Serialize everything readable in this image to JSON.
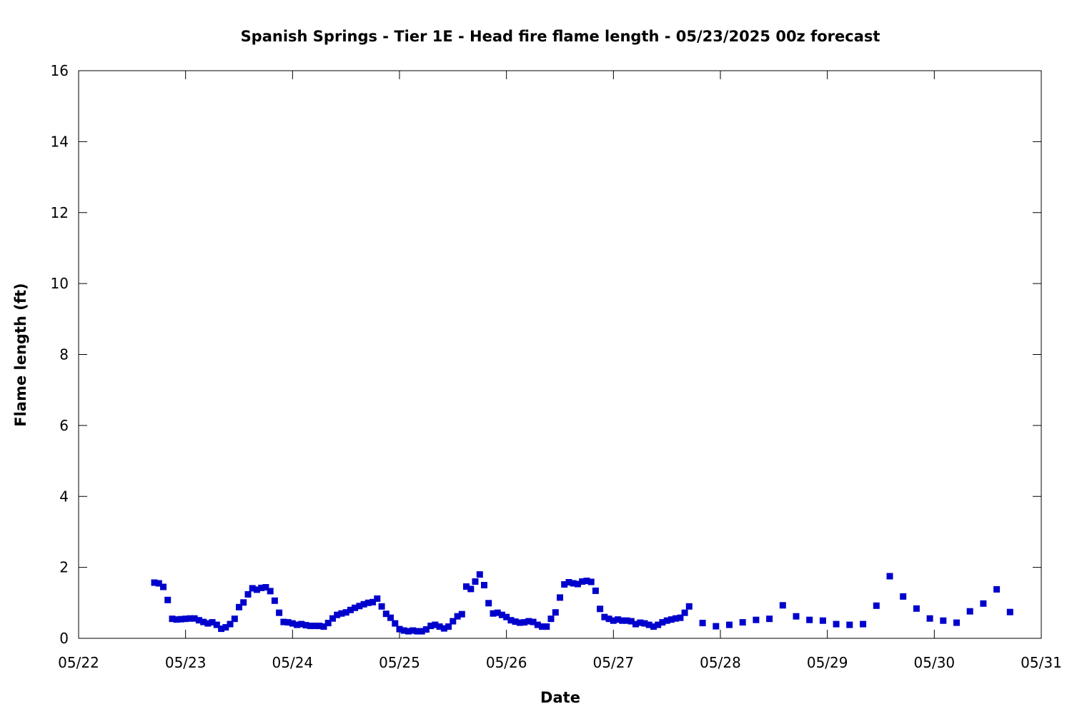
{
  "chart_data": {
    "type": "scatter",
    "title": "Spanish Springs - Tier 1E - Head fire flame length - 05/23/2025 00z forecast",
    "xlabel": "Date",
    "ylabel": "Flame length (ft)",
    "x_ticks": [
      "05/22",
      "05/23",
      "05/24",
      "05/25",
      "05/26",
      "05/27",
      "05/28",
      "05/29",
      "05/30",
      "05/31"
    ],
    "y_ticks": [
      "0",
      "2",
      "4",
      "6",
      "8",
      "10",
      "12",
      "14",
      "16"
    ],
    "xlim": [
      "2025-05-22T00:00",
      "2025-05-31T00:00"
    ],
    "ylim": [
      0,
      16
    ],
    "grid": false,
    "marker": "square",
    "color": "#0000cc",
    "series": [
      {
        "points": [
          [
            "2025-05-22T17:00",
            1.57
          ],
          [
            "2025-05-22T18:00",
            1.55
          ],
          [
            "2025-05-22T19:00",
            1.45
          ],
          [
            "2025-05-22T20:00",
            1.08
          ],
          [
            "2025-05-22T21:00",
            0.55
          ],
          [
            "2025-05-22T22:00",
            0.53
          ],
          [
            "2025-05-22T23:00",
            0.54
          ],
          [
            "2025-05-23T00:00",
            0.55
          ],
          [
            "2025-05-23T01:00",
            0.56
          ],
          [
            "2025-05-23T02:00",
            0.56
          ],
          [
            "2025-05-23T03:00",
            0.51
          ],
          [
            "2025-05-23T04:00",
            0.46
          ],
          [
            "2025-05-23T05:00",
            0.42
          ],
          [
            "2025-05-23T06:00",
            0.45
          ],
          [
            "2025-05-23T07:00",
            0.38
          ],
          [
            "2025-05-23T08:00",
            0.27
          ],
          [
            "2025-05-23T09:00",
            0.31
          ],
          [
            "2025-05-23T10:00",
            0.4
          ],
          [
            "2025-05-23T11:00",
            0.55
          ],
          [
            "2025-05-23T12:00",
            0.88
          ],
          [
            "2025-05-23T13:00",
            1.01
          ],
          [
            "2025-05-23T14:00",
            1.24
          ],
          [
            "2025-05-23T15:00",
            1.41
          ],
          [
            "2025-05-23T16:00",
            1.37
          ],
          [
            "2025-05-23T17:00",
            1.42
          ],
          [
            "2025-05-23T18:00",
            1.44
          ],
          [
            "2025-05-23T19:00",
            1.33
          ],
          [
            "2025-05-23T20:00",
            1.06
          ],
          [
            "2025-05-23T21:00",
            0.72
          ],
          [
            "2025-05-23T22:00",
            0.46
          ],
          [
            "2025-05-23T23:00",
            0.45
          ],
          [
            "2025-05-24T00:00",
            0.42
          ],
          [
            "2025-05-24T01:00",
            0.38
          ],
          [
            "2025-05-24T02:00",
            0.4
          ],
          [
            "2025-05-24T03:00",
            0.37
          ],
          [
            "2025-05-24T04:00",
            0.35
          ],
          [
            "2025-05-24T05:00",
            0.35
          ],
          [
            "2025-05-24T06:00",
            0.35
          ],
          [
            "2025-05-24T07:00",
            0.33
          ],
          [
            "2025-05-24T08:00",
            0.43
          ],
          [
            "2025-05-24T09:00",
            0.56
          ],
          [
            "2025-05-24T10:00",
            0.66
          ],
          [
            "2025-05-24T11:00",
            0.7
          ],
          [
            "2025-05-24T12:00",
            0.73
          ],
          [
            "2025-05-24T13:00",
            0.8
          ],
          [
            "2025-05-24T14:00",
            0.86
          ],
          [
            "2025-05-24T15:00",
            0.91
          ],
          [
            "2025-05-24T16:00",
            0.96
          ],
          [
            "2025-05-24T17:00",
            1.0
          ],
          [
            "2025-05-24T18:00",
            1.02
          ],
          [
            "2025-05-24T19:00",
            1.12
          ],
          [
            "2025-05-24T20:00",
            0.9
          ],
          [
            "2025-05-24T21:00",
            0.69
          ],
          [
            "2025-05-24T22:00",
            0.58
          ],
          [
            "2025-05-24T23:00",
            0.42
          ],
          [
            "2025-05-25T00:00",
            0.26
          ],
          [
            "2025-05-25T01:00",
            0.22
          ],
          [
            "2025-05-25T02:00",
            0.2
          ],
          [
            "2025-05-25T03:00",
            0.22
          ],
          [
            "2025-05-25T04:00",
            0.2
          ],
          [
            "2025-05-25T05:00",
            0.2
          ],
          [
            "2025-05-25T06:00",
            0.25
          ],
          [
            "2025-05-25T07:00",
            0.35
          ],
          [
            "2025-05-25T08:00",
            0.38
          ],
          [
            "2025-05-25T09:00",
            0.33
          ],
          [
            "2025-05-25T10:00",
            0.28
          ],
          [
            "2025-05-25T11:00",
            0.33
          ],
          [
            "2025-05-25T12:00",
            0.48
          ],
          [
            "2025-05-25T13:00",
            0.62
          ],
          [
            "2025-05-25T14:00",
            0.68
          ],
          [
            "2025-05-25T15:00",
            1.46
          ],
          [
            "2025-05-25T16:00",
            1.39
          ],
          [
            "2025-05-25T17:00",
            1.6
          ],
          [
            "2025-05-25T18:00",
            1.8
          ],
          [
            "2025-05-25T19:00",
            1.5
          ],
          [
            "2025-05-25T20:00",
            0.99
          ],
          [
            "2025-05-25T21:00",
            0.7
          ],
          [
            "2025-05-25T22:00",
            0.72
          ],
          [
            "2025-05-25T23:00",
            0.66
          ],
          [
            "2025-05-26T00:00",
            0.6
          ],
          [
            "2025-05-26T01:00",
            0.51
          ],
          [
            "2025-05-26T02:00",
            0.47
          ],
          [
            "2025-05-26T03:00",
            0.44
          ],
          [
            "2025-05-26T04:00",
            0.45
          ],
          [
            "2025-05-26T05:00",
            0.48
          ],
          [
            "2025-05-26T06:00",
            0.46
          ],
          [
            "2025-05-26T07:00",
            0.38
          ],
          [
            "2025-05-26T08:00",
            0.33
          ],
          [
            "2025-05-26T09:00",
            0.33
          ],
          [
            "2025-05-26T10:00",
            0.55
          ],
          [
            "2025-05-26T11:00",
            0.73
          ],
          [
            "2025-05-26T12:00",
            1.15
          ],
          [
            "2025-05-26T13:00",
            1.52
          ],
          [
            "2025-05-26T14:00",
            1.58
          ],
          [
            "2025-05-26T15:00",
            1.55
          ],
          [
            "2025-05-26T16:00",
            1.53
          ],
          [
            "2025-05-26T17:00",
            1.6
          ],
          [
            "2025-05-26T18:00",
            1.62
          ],
          [
            "2025-05-26T19:00",
            1.59
          ],
          [
            "2025-05-26T20:00",
            1.34
          ],
          [
            "2025-05-26T21:00",
            0.83
          ],
          [
            "2025-05-26T22:00",
            0.6
          ],
          [
            "2025-05-26T23:00",
            0.55
          ],
          [
            "2025-05-27T00:00",
            0.5
          ],
          [
            "2025-05-27T01:00",
            0.53
          ],
          [
            "2025-05-27T02:00",
            0.5
          ],
          [
            "2025-05-27T03:00",
            0.5
          ],
          [
            "2025-05-27T04:00",
            0.48
          ],
          [
            "2025-05-27T05:00",
            0.4
          ],
          [
            "2025-05-27T06:00",
            0.44
          ],
          [
            "2025-05-27T07:00",
            0.42
          ],
          [
            "2025-05-27T08:00",
            0.38
          ],
          [
            "2025-05-27T09:00",
            0.33
          ],
          [
            "2025-05-27T10:00",
            0.38
          ],
          [
            "2025-05-27T11:00",
            0.45
          ],
          [
            "2025-05-27T12:00",
            0.5
          ],
          [
            "2025-05-27T13:00",
            0.53
          ],
          [
            "2025-05-27T14:00",
            0.56
          ],
          [
            "2025-05-27T15:00",
            0.58
          ],
          [
            "2025-05-27T16:00",
            0.72
          ],
          [
            "2025-05-27T17:00",
            0.9
          ],
          [
            "2025-05-27T20:00",
            0.43
          ],
          [
            "2025-05-27T23:00",
            0.34
          ],
          [
            "2025-05-28T02:00",
            0.38
          ],
          [
            "2025-05-28T05:00",
            0.45
          ],
          [
            "2025-05-28T08:00",
            0.52
          ],
          [
            "2025-05-28T11:00",
            0.55
          ],
          [
            "2025-05-28T14:00",
            0.93
          ],
          [
            "2025-05-28T17:00",
            0.62
          ],
          [
            "2025-05-28T20:00",
            0.52
          ],
          [
            "2025-05-28T23:00",
            0.5
          ],
          [
            "2025-05-29T02:00",
            0.4
          ],
          [
            "2025-05-29T05:00",
            0.38
          ],
          [
            "2025-05-29T08:00",
            0.4
          ],
          [
            "2025-05-29T11:00",
            0.92
          ],
          [
            "2025-05-29T14:00",
            1.75
          ],
          [
            "2025-05-29T17:00",
            1.18
          ],
          [
            "2025-05-29T20:00",
            0.84
          ],
          [
            "2025-05-29T23:00",
            0.56
          ],
          [
            "2025-05-30T02:00",
            0.5
          ],
          [
            "2025-05-30T05:00",
            0.44
          ],
          [
            "2025-05-30T08:00",
            0.76
          ],
          [
            "2025-05-30T11:00",
            0.98
          ],
          [
            "2025-05-30T14:00",
            1.38
          ],
          [
            "2025-05-30T17:00",
            0.74
          ]
        ]
      }
    ]
  }
}
